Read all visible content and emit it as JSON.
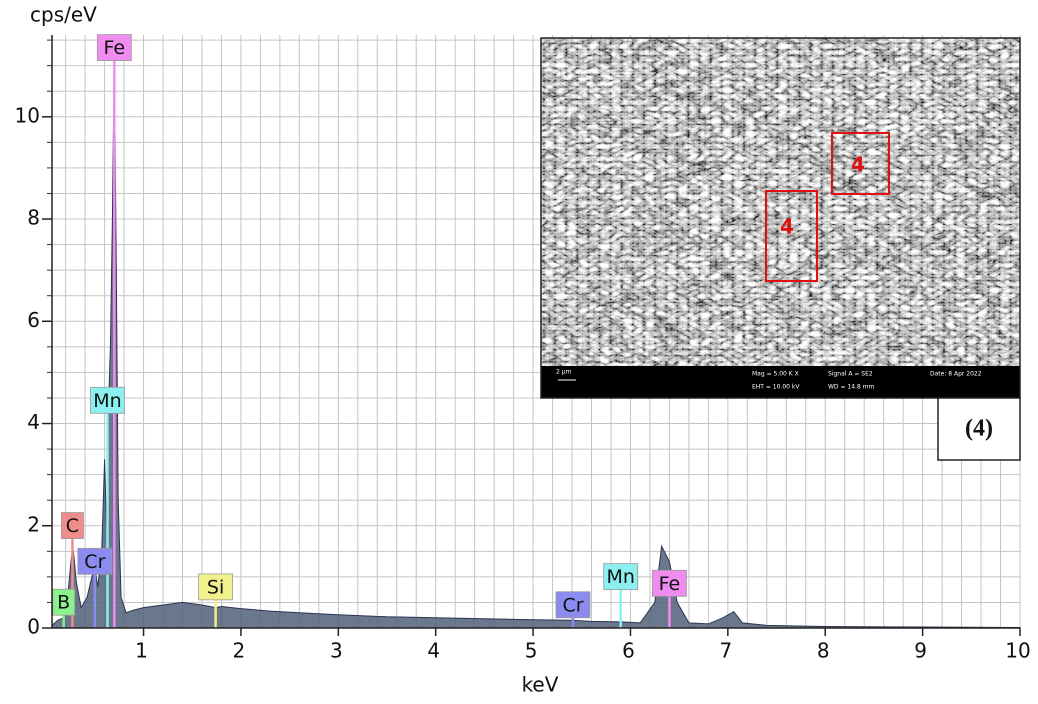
{
  "chart_data": {
    "type": "area",
    "y_label": "cps/eV",
    "x_label": "keV",
    "xlim": [
      0.06,
      10
    ],
    "ylim": [
      0,
      11.6
    ],
    "xticks": [
      1,
      2,
      3,
      4,
      5,
      6,
      7,
      8,
      9,
      10
    ],
    "yticks": [
      0,
      2,
      4,
      6,
      8,
      10
    ],
    "x_minor_step": 0.2,
    "y_minor_step": 0.5,
    "grid": true,
    "color": "#50607a",
    "x": [
      0.06,
      0.12,
      0.18,
      0.22,
      0.26,
      0.28,
      0.31,
      0.36,
      0.42,
      0.47,
      0.5,
      0.53,
      0.57,
      0.6,
      0.62,
      0.64,
      0.66,
      0.68,
      0.7,
      0.72,
      0.74,
      0.77,
      0.82,
      0.9,
      1.0,
      1.2,
      1.4,
      1.6,
      1.74,
      1.8,
      2.0,
      2.3,
      2.6,
      3.0,
      3.5,
      4.0,
      4.5,
      5.0,
      5.4,
      5.6,
      5.9,
      6.1,
      6.25,
      6.32,
      6.4,
      6.48,
      6.6,
      6.8,
      6.95,
      7.06,
      7.15,
      7.4,
      8,
      9,
      10
    ],
    "values": [
      0.05,
      0.15,
      0.2,
      0.6,
      1.4,
      1.5,
      0.9,
      0.4,
      0.6,
      1.0,
      1.2,
      0.8,
      1.5,
      3.3,
      2.0,
      4.3,
      5.5,
      8,
      11.2,
      7,
      2.5,
      0.6,
      0.3,
      0.35,
      0.4,
      0.45,
      0.5,
      0.45,
      0.4,
      0.42,
      0.38,
      0.33,
      0.3,
      0.26,
      0.22,
      0.2,
      0.18,
      0.16,
      0.15,
      0.13,
      0.12,
      0.1,
      0.5,
      1.6,
      1.3,
      0.5,
      0.1,
      0.08,
      0.2,
      0.32,
      0.1,
      0.05,
      0.03,
      0.02,
      0.01
    ],
    "peaks": [
      {
        "label": "Fe",
        "energy": 0.7,
        "height": 11.1,
        "color": "#f08cf0"
      },
      {
        "label": "Mn",
        "energy": 0.63,
        "height": 4.2,
        "color": "#8cf0f0"
      },
      {
        "label": "C",
        "energy": 0.27,
        "height": 1.75,
        "color": "#f08c8c"
      },
      {
        "label": "Cr",
        "energy": 0.5,
        "height": 1.05,
        "color": "#8c8cf0"
      },
      {
        "label": "B",
        "energy": 0.18,
        "height": 0.25,
        "color": "#8cf08c"
      },
      {
        "label": "Si",
        "energy": 1.74,
        "height": 0.55,
        "color": "#f0f08c"
      },
      {
        "label": "Cr",
        "energy": 5.41,
        "height": 0.2,
        "color": "#8c8cf0"
      },
      {
        "label": "Mn",
        "energy": 5.9,
        "height": 0.75,
        "color": "#8cf0f0"
      },
      {
        "label": "Fe",
        "energy": 6.4,
        "height": 0.62,
        "color": "#f08cf0"
      }
    ],
    "inset": {
      "regions": [
        "4",
        "4"
      ],
      "caption": "(4)",
      "scale_bar": "2 µm",
      "info": [
        "Mag = 5.00 K X",
        "Signal A = SE2",
        "Date: 8 Apr 2022",
        "EHT = 10.00 kV",
        "WD = 14.8 mm"
      ]
    }
  }
}
